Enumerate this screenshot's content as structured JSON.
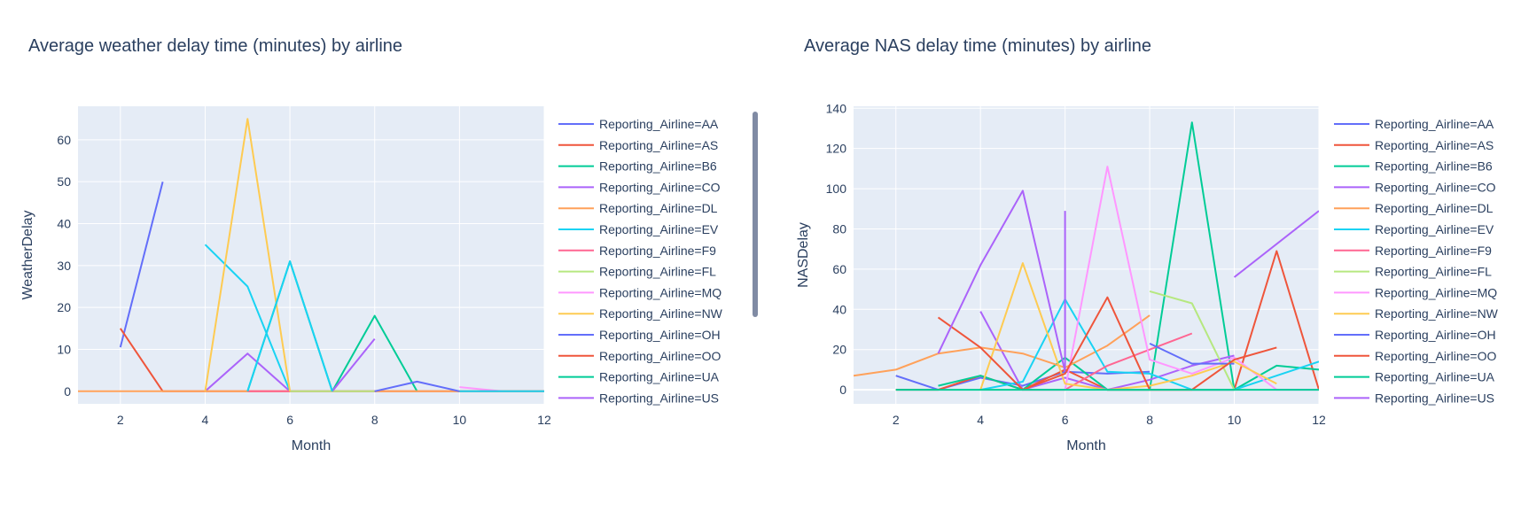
{
  "chart_data": [
    {
      "type": "line",
      "title": "Average weather delay time (minutes) by airline",
      "xlabel": "Month",
      "ylabel": "WeatherDelay",
      "xlim": [
        1,
        12
      ],
      "ylim": [
        -3,
        68
      ],
      "xticks": [
        2,
        4,
        6,
        8,
        10,
        12
      ],
      "yticks": [
        0,
        10,
        20,
        30,
        40,
        50,
        60
      ],
      "grid": true,
      "legend_position": "right",
      "series": [
        {
          "name": "Reporting_Airline=AA",
          "color": "#636efa",
          "x": [
            2,
            3
          ],
          "y": [
            10.5,
            50
          ]
        },
        {
          "name": "Reporting_Airline=AS",
          "color": "#EF553B",
          "x": [
            2,
            3,
            4,
            5,
            6,
            7,
            8,
            9,
            10
          ],
          "y": [
            15,
            0,
            0,
            0,
            0,
            0,
            0,
            0,
            0
          ]
        },
        {
          "name": "Reporting_Airline=B6",
          "color": "#00cc96",
          "x": [
            7,
            8,
            9
          ],
          "y": [
            0,
            18,
            0
          ]
        },
        {
          "name": "Reporting_Airline=CO",
          "color": "#ab63fa",
          "x": [
            4,
            5,
            6,
            7,
            8
          ],
          "y": [
            0,
            9,
            0,
            0,
            0
          ]
        },
        {
          "name": "Reporting_Airline=DL",
          "color": "#FFA15A",
          "x": [
            1,
            2,
            3,
            4,
            5,
            6,
            7,
            8,
            9,
            10,
            11,
            12
          ],
          "y": [
            0,
            0,
            0,
            0,
            0,
            0,
            0,
            0,
            0,
            0,
            0,
            0
          ]
        },
        {
          "name": "Reporting_Airline=EV",
          "color": "#19d3f3",
          "x": [
            4,
            5,
            6
          ],
          "y": [
            35,
            25,
            0
          ]
        },
        {
          "name": "Reporting_Airline=F9",
          "color": "#FF6692",
          "x": [
            5,
            6,
            7,
            8
          ],
          "y": [
            0,
            0,
            0,
            0
          ]
        },
        {
          "name": "Reporting_Airline=FL",
          "color": "#B6E880",
          "x": [
            6,
            7,
            8
          ],
          "y": [
            0,
            0,
            0
          ]
        },
        {
          "name": "Reporting_Airline=MQ",
          "color": "#FF97FF",
          "x": [
            10,
            11
          ],
          "y": [
            1,
            0
          ]
        },
        {
          "name": "Reporting_Airline=NW",
          "color": "#FECB52",
          "x": [
            4,
            5,
            6
          ],
          "y": [
            0,
            65,
            0
          ]
        },
        {
          "name": "Reporting_Airline=OH",
          "color": "#636efa",
          "x": [
            8,
            9,
            10
          ],
          "y": [
            0,
            2.3,
            0
          ]
        },
        {
          "name": "Reporting_Airline=OO",
          "color": "#EF553B",
          "x": [
            10,
            11,
            12
          ],
          "y": [
            0,
            0,
            0
          ]
        },
        {
          "name": "Reporting_Airline=UA",
          "color": "#00cc96",
          "x": [
            5,
            6,
            7
          ],
          "y": [
            0,
            31,
            0
          ]
        },
        {
          "name": "Reporting_Airline=US",
          "color": "#ab63fa",
          "x": [
            7,
            8
          ],
          "y": [
            0,
            12.5
          ]
        }
      ],
      "extra_traces": [
        {
          "color": "#19d3f3",
          "x": [
            5,
            6,
            7
          ],
          "y": [
            0,
            31,
            0
          ]
        },
        {
          "color": "#19d3f3",
          "x": [
            10,
            11,
            12
          ],
          "y": [
            0,
            0,
            0
          ]
        }
      ]
    },
    {
      "type": "line",
      "title": "Average NAS delay time (minutes) by airline",
      "xlabel": "Month",
      "ylabel": "NASDelay",
      "xlim": [
        1,
        12
      ],
      "ylim": [
        -7,
        141
      ],
      "xticks": [
        2,
        4,
        6,
        8,
        10,
        12
      ],
      "yticks": [
        0,
        20,
        40,
        60,
        80,
        100,
        120,
        140
      ],
      "grid": true,
      "legend_position": "right",
      "series": [
        {
          "name": "Reporting_Airline=AA",
          "color": "#636efa",
          "x": [
            2,
            3,
            4,
            5,
            6,
            7,
            8
          ],
          "y": [
            7,
            0,
            6,
            2,
            9,
            8,
            9
          ]
        },
        {
          "name": "Reporting_Airline=AS",
          "color": "#EF553B",
          "x": [
            2,
            3,
            4,
            5,
            6,
            7,
            8,
            9,
            10,
            11,
            12
          ],
          "y": [
            0,
            0,
            7,
            0,
            10,
            0,
            0,
            0,
            0,
            69,
            0
          ]
        },
        {
          "name": "Reporting_Airline=B6",
          "color": "#00cc96",
          "x": [
            3,
            4,
            5,
            6,
            7,
            8,
            9,
            10,
            11,
            12
          ],
          "y": [
            2,
            7,
            0,
            16,
            0,
            0,
            133,
            0,
            12,
            10
          ]
        },
        {
          "name": "Reporting_Airline=CO",
          "color": "#ab63fa",
          "x": [
            4,
            5,
            6,
            7,
            8,
            9,
            10
          ],
          "y": [
            39,
            0,
            6,
            0,
            5,
            12,
            17
          ]
        },
        {
          "name": "Reporting_Airline=DL",
          "color": "#FFA15A",
          "x": [
            1,
            2,
            3,
            4,
            5,
            6,
            7,
            8
          ],
          "y": [
            7,
            10,
            18,
            21,
            18,
            11,
            22,
            37
          ]
        },
        {
          "name": "Reporting_Airline=EV",
          "color": "#19d3f3",
          "x": [
            4,
            5,
            6,
            7,
            8,
            9,
            10,
            11,
            12
          ],
          "y": [
            0,
            4,
            45,
            9,
            8,
            0,
            0,
            7,
            14
          ]
        },
        {
          "name": "Reporting_Airline=F9",
          "color": "#FF6692",
          "x": [
            5,
            6,
            7,
            8,
            9
          ],
          "y": [
            0,
            0,
            12,
            20,
            28
          ]
        },
        {
          "name": "Reporting_Airline=FL",
          "color": "#B6E880",
          "x": [
            8,
            9,
            10
          ],
          "y": [
            49,
            43,
            0
          ]
        },
        {
          "name": "Reporting_Airline=MQ",
          "color": "#FF97FF",
          "x": [
            6,
            7,
            8,
            9,
            10,
            11,
            12
          ],
          "y": [
            0,
            111,
            15,
            8,
            16,
            0,
            0
          ]
        },
        {
          "name": "Reporting_Airline=NW",
          "color": "#FECB52",
          "x": [
            4,
            5,
            6,
            7,
            8,
            9,
            10,
            11
          ],
          "y": [
            0,
            63,
            3,
            0,
            2,
            7,
            14,
            3
          ]
        },
        {
          "name": "Reporting_Airline=OH",
          "color": "#636efa",
          "x": [
            8,
            9,
            10
          ],
          "y": [
            23,
            13,
            13
          ]
        },
        {
          "name": "Reporting_Airline=OO",
          "color": "#EF553B",
          "x": [
            3,
            4,
            5,
            6,
            7,
            8,
            9,
            10,
            11
          ],
          "y": [
            36,
            21,
            0,
            8,
            46,
            0,
            0,
            15,
            21
          ]
        },
        {
          "name": "Reporting_Airline=UA",
          "color": "#00cc96",
          "x": [
            2,
            3,
            4,
            5,
            6,
            7,
            8,
            9,
            10,
            11,
            12
          ],
          "y": [
            0,
            0,
            0,
            0,
            0,
            0,
            0,
            0,
            0,
            0,
            0
          ]
        },
        {
          "name": "Reporting_Airline=US",
          "color": "#ab63fa",
          "x": [
            3,
            4,
            5,
            6
          ],
          "y": [
            18,
            62,
            99,
            9
          ]
        }
      ],
      "extra_traces": [
        {
          "color": "#ab63fa",
          "x": [
            6,
            6
          ],
          "y": [
            10,
            89
          ]
        },
        {
          "color": "#ab63fa",
          "x": [
            10,
            12
          ],
          "y": [
            56,
            89
          ]
        }
      ]
    }
  ]
}
